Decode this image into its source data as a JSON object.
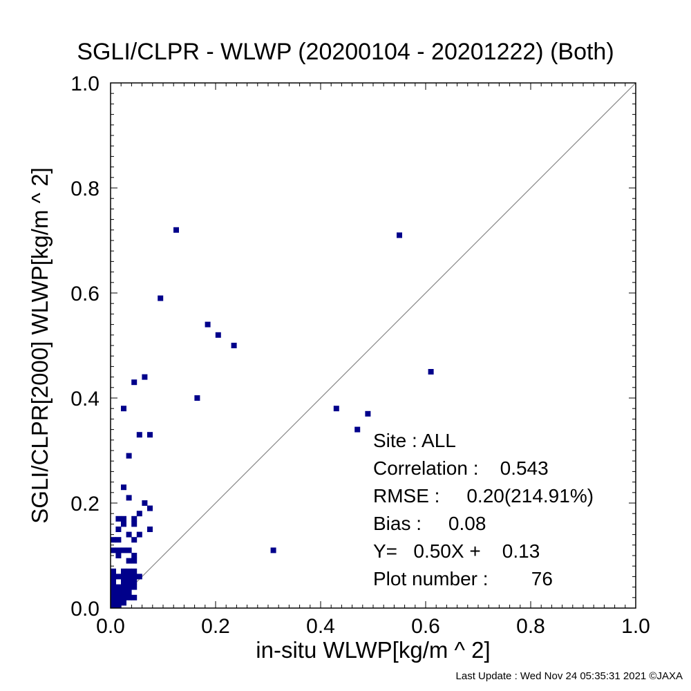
{
  "chart_data": {
    "type": "scatter",
    "title": "SGLI/CLPR - WLWP (20200104 - 20201222) (Both)",
    "xlabel": "in-situ WLWP[kg/m ^ 2]",
    "ylabel": "SGLI/CLPR[2000]    WLWP[kg/m ^ 2]",
    "xlim": [
      0.0,
      1.0
    ],
    "ylim": [
      0.0,
      1.0
    ],
    "x_tick_labels": [
      "0.0",
      "0.2",
      "0.4",
      "0.6",
      "0.8",
      "1.0"
    ],
    "y_tick_labels": [
      "0.0",
      "0.2",
      "0.4",
      "0.6",
      "0.8",
      "1.0"
    ],
    "grid": false,
    "reference_line": "1:1 diagonal",
    "marker_color": "#00008b",
    "points": [
      {
        "x": 0.125,
        "y": 0.72
      },
      {
        "x": 0.55,
        "y": 0.71
      },
      {
        "x": 0.095,
        "y": 0.59
      },
      {
        "x": 0.185,
        "y": 0.54
      },
      {
        "x": 0.205,
        "y": 0.52
      },
      {
        "x": 0.235,
        "y": 0.5
      },
      {
        "x": 0.61,
        "y": 0.45
      },
      {
        "x": 0.065,
        "y": 0.44
      },
      {
        "x": 0.045,
        "y": 0.43
      },
      {
        "x": 0.165,
        "y": 0.4
      },
      {
        "x": 0.025,
        "y": 0.38
      },
      {
        "x": 0.43,
        "y": 0.38
      },
      {
        "x": 0.49,
        "y": 0.37
      },
      {
        "x": 0.47,
        "y": 0.34
      },
      {
        "x": 0.055,
        "y": 0.33
      },
      {
        "x": 0.075,
        "y": 0.33
      },
      {
        "x": 0.035,
        "y": 0.29
      },
      {
        "x": 0.025,
        "y": 0.23
      },
      {
        "x": 0.035,
        "y": 0.21
      },
      {
        "x": 0.065,
        "y": 0.2
      },
      {
        "x": 0.075,
        "y": 0.19
      },
      {
        "x": 0.055,
        "y": 0.18
      },
      {
        "x": 0.015,
        "y": 0.17
      },
      {
        "x": 0.045,
        "y": 0.17
      },
      {
        "x": 0.025,
        "y": 0.16
      },
      {
        "x": 0.045,
        "y": 0.16
      },
      {
        "x": 0.015,
        "y": 0.15
      },
      {
        "x": 0.075,
        "y": 0.15
      },
      {
        "x": 0.035,
        "y": 0.14
      },
      {
        "x": 0.055,
        "y": 0.14
      },
      {
        "x": 0.005,
        "y": 0.13
      },
      {
        "x": 0.015,
        "y": 0.13
      },
      {
        "x": 0.045,
        "y": 0.13
      },
      {
        "x": 0.31,
        "y": 0.11
      },
      {
        "x": 0.015,
        "y": 0.11
      },
      {
        "x": 0.025,
        "y": 0.11
      },
      {
        "x": 0.035,
        "y": 0.11
      },
      {
        "x": 0.015,
        "y": 0.1
      },
      {
        "x": 0.045,
        "y": 0.1
      },
      {
        "x": 0.035,
        "y": 0.09
      },
      {
        "x": 0.045,
        "y": 0.09
      },
      {
        "x": 0.045,
        "y": 0.07
      },
      {
        "x": 0.005,
        "y": 0.06
      },
      {
        "x": 0.015,
        "y": 0.06
      },
      {
        "x": 0.025,
        "y": 0.06
      },
      {
        "x": 0.035,
        "y": 0.06
      },
      {
        "x": 0.005,
        "y": 0.05
      },
      {
        "x": 0.025,
        "y": 0.05
      },
      {
        "x": 0.045,
        "y": 0.05
      },
      {
        "x": 0.005,
        "y": 0.04
      },
      {
        "x": 0.015,
        "y": 0.04
      },
      {
        "x": 0.035,
        "y": 0.04
      },
      {
        "x": 0.045,
        "y": 0.04
      },
      {
        "x": 0.005,
        "y": 0.03
      },
      {
        "x": 0.025,
        "y": 0.03
      },
      {
        "x": 0.005,
        "y": 0.02
      },
      {
        "x": 0.015,
        "y": 0.02
      },
      {
        "x": 0.035,
        "y": 0.02
      },
      {
        "x": 0.005,
        "y": 0.01
      },
      {
        "x": 0.025,
        "y": 0.01
      },
      {
        "x": 0.015,
        "y": 0.01
      },
      {
        "x": 0.005,
        "y": 0.0
      },
      {
        "x": 0.015,
        "y": 0.0
      },
      {
        "x": 0.035,
        "y": 0.03
      },
      {
        "x": 0.045,
        "y": 0.06
      },
      {
        "x": 0.025,
        "y": 0.04
      },
      {
        "x": 0.005,
        "y": 0.11
      },
      {
        "x": 0.025,
        "y": 0.17
      },
      {
        "x": 0.055,
        "y": 0.06
      },
      {
        "x": 0.015,
        "y": 0.03
      },
      {
        "x": 0.035,
        "y": 0.05
      },
      {
        "x": 0.025,
        "y": 0.02
      },
      {
        "x": 0.005,
        "y": 0.07
      },
      {
        "x": 0.035,
        "y": 0.07
      },
      {
        "x": 0.045,
        "y": 0.02
      },
      {
        "x": 0.025,
        "y": 0.07
      }
    ]
  },
  "stats": {
    "site": "Site : ALL",
    "correlation": "Correlation :    0.543",
    "rmse": "RMSE :     0.20(214.91%)",
    "bias": "Bias :     0.08",
    "regression": "Y=   0.50X +    0.13",
    "plot_number": "Plot number :        76"
  },
  "footer": "Last Update : Wed Nov 24 05:35:31 2021  ©JAXA"
}
